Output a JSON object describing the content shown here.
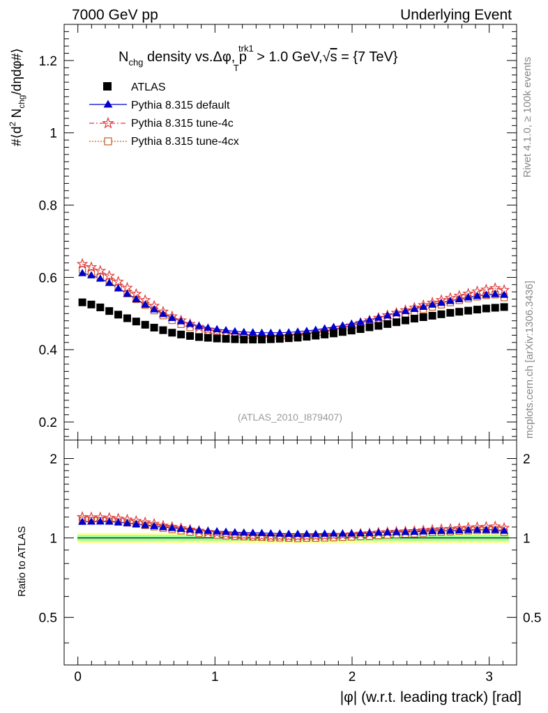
{
  "header": {
    "left": "7000 GeV pp",
    "right": "Underlying Event"
  },
  "side_labels": {
    "rivet": "Rivet 4.1.0, ≥ 100k events",
    "mcplots": "mcplots.cern.ch [arXiv:1306.3436]"
  },
  "title": {
    "n": "N",
    "chg": "chg",
    "mid": " density vs.Δφ, p",
    "sup": "trk1",
    "sub": "T",
    "end": " > 1.0 GeV,",
    "sqrt": "√",
    "s": "s",
    "eq": " = {7 TeV}"
  },
  "analysis_id": "(ATLAS_2010_I879407)",
  "ylabel_main": {
    "a": "#⟨d",
    "sup2": "2",
    "b": " N",
    "chg": "chg",
    "c": "/dηdφ#⟩"
  },
  "ylabel_ratio": "Ratio to ATLAS",
  "xlabel": "|φ| (w.r.t. leading track) [rad]",
  "legend": [
    {
      "label": "ATLAS"
    },
    {
      "label": "Pythia 8.315 default"
    },
    {
      "label": "Pythia 8.315 tune-4c"
    },
    {
      "label": "Pythia 8.315 tune-4cx"
    }
  ],
  "colors": {
    "atlas": "#000000",
    "default": "#0000cc",
    "tune4c": "#e03a3a",
    "tune4cx": "#c65a1e",
    "band_outer": "#ffff99",
    "band_inner": "#99ff99"
  },
  "chart_data": {
    "type": "scatter",
    "title": "N_chg density vs. Δφ, p_T^trk1 > 1.0 GeV, √s = {7 TeV}",
    "xlabel": "|φ| (w.r.t. leading track) [rad]",
    "ylabel": "#⟨d² N_chg/dηdφ#⟩",
    "xlim": [
      -0.1,
      3.2
    ],
    "ylim": [
      0.15,
      1.3
    ],
    "ratio_ylim": [
      0.33,
      2.35
    ],
    "xticks": [
      "0",
      "1",
      "2",
      "3"
    ],
    "yticks_main": [
      "0.2",
      "0.4",
      "0.6",
      "0.8",
      "1",
      "1.2"
    ],
    "yticks_ratio": [
      "0.5",
      "1",
      "2"
    ],
    "x": [
      0.0327,
      0.0982,
      0.1636,
      0.2291,
      0.2945,
      0.36,
      0.4254,
      0.4909,
      0.5563,
      0.6218,
      0.6872,
      0.7527,
      0.8181,
      0.8836,
      0.949,
      1.0145,
      1.0799,
      1.1454,
      1.2108,
      1.2763,
      1.3417,
      1.4072,
      1.4726,
      1.5381,
      1.6035,
      1.669,
      1.7344,
      1.7999,
      1.8653,
      1.9308,
      1.9962,
      2.0617,
      2.1271,
      2.1926,
      2.258,
      2.3235,
      2.3889,
      2.4544,
      2.5198,
      2.5853,
      2.6507,
      2.7162,
      2.7816,
      2.8471,
      2.9125,
      2.978,
      3.0434,
      3.1089
    ],
    "series": [
      {
        "name": "ATLAS",
        "values": [
          0.531,
          0.525,
          0.517,
          0.507,
          0.497,
          0.487,
          0.478,
          0.469,
          0.461,
          0.454,
          0.447,
          0.442,
          0.438,
          0.435,
          0.433,
          0.431,
          0.43,
          0.429,
          0.428,
          0.428,
          0.428,
          0.429,
          0.43,
          0.432,
          0.434,
          0.436,
          0.439,
          0.442,
          0.445,
          0.449,
          0.453,
          0.457,
          0.462,
          0.466,
          0.471,
          0.476,
          0.481,
          0.486,
          0.49,
          0.494,
          0.498,
          0.502,
          0.505,
          0.508,
          0.511,
          0.514,
          0.516,
          0.518
        ]
      },
      {
        "name": "Pythia 8.315 default",
        "values": [
          0.612,
          0.606,
          0.597,
          0.585,
          0.57,
          0.555,
          0.54,
          0.525,
          0.512,
          0.499,
          0.488,
          0.479,
          0.472,
          0.466,
          0.461,
          0.457,
          0.454,
          0.451,
          0.449,
          0.448,
          0.447,
          0.447,
          0.447,
          0.448,
          0.45,
          0.452,
          0.455,
          0.459,
          0.463,
          0.467,
          0.472,
          0.477,
          0.483,
          0.489,
          0.495,
          0.501,
          0.507,
          0.513,
          0.519,
          0.525,
          0.53,
          0.535,
          0.54,
          0.545,
          0.549,
          0.552,
          0.554,
          0.552
        ]
      },
      {
        "name": "Pythia 8.315 tune-4c",
        "values": [
          0.637,
          0.628,
          0.618,
          0.604,
          0.588,
          0.571,
          0.554,
          0.537,
          0.521,
          0.505,
          0.492,
          0.481,
          0.471,
          0.463,
          0.456,
          0.45,
          0.445,
          0.441,
          0.438,
          0.436,
          0.435,
          0.435,
          0.436,
          0.437,
          0.439,
          0.442,
          0.446,
          0.45,
          0.455,
          0.461,
          0.467,
          0.474,
          0.481,
          0.488,
          0.495,
          0.502,
          0.509,
          0.516,
          0.523,
          0.53,
          0.537,
          0.543,
          0.549,
          0.555,
          0.561,
          0.566,
          0.57,
          0.565
        ]
      },
      {
        "name": "Pythia 8.315 tune-4cx",
        "values": [
          0.621,
          0.612,
          0.601,
          0.587,
          0.571,
          0.555,
          0.539,
          0.523,
          0.508,
          0.494,
          0.481,
          0.47,
          0.461,
          0.453,
          0.447,
          0.442,
          0.438,
          0.435,
          0.433,
          0.431,
          0.43,
          0.429,
          0.43,
          0.431,
          0.432,
          0.435,
          0.438,
          0.442,
          0.446,
          0.451,
          0.457,
          0.463,
          0.469,
          0.476,
          0.483,
          0.49,
          0.497,
          0.504,
          0.511,
          0.518,
          0.524,
          0.53,
          0.536,
          0.541,
          0.546,
          0.55,
          0.552,
          0.544
        ]
      }
    ]
  }
}
